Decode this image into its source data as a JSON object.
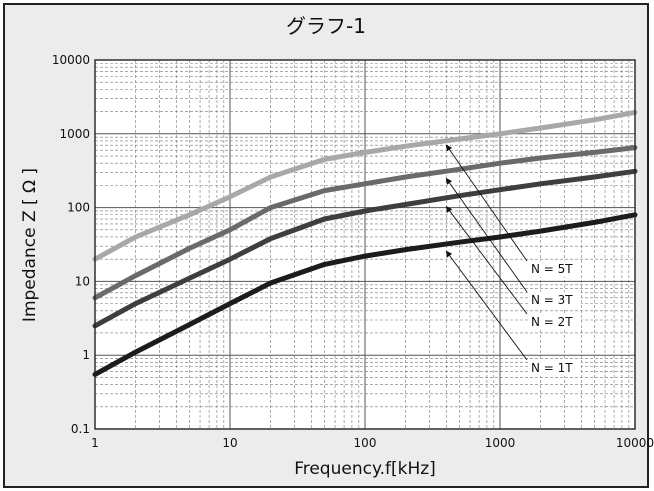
{
  "chart_data": {
    "type": "line",
    "title": "グラフ-1",
    "xlabel": "Frequency.f[kHz]",
    "ylabel": "Impedance Z [ Ω ]",
    "x_scale": "log",
    "y_scale": "log",
    "xlim": [
      1,
      10000
    ],
    "ylim": [
      0.1,
      10000
    ],
    "x_ticks": [
      "1",
      "10",
      "100",
      "1000",
      "10000"
    ],
    "y_ticks": [
      "0.1",
      "1",
      "10",
      "100",
      "1000",
      "10000"
    ],
    "grid": true,
    "colors": {
      "N = 5T": "#a8a8a8",
      "N = 3T": "#6a6a6a",
      "N = 2T": "#3e3e3e",
      "N = 1T": "#1c1c1c"
    },
    "series": [
      {
        "name": "N = 5T",
        "x": [
          1,
          2,
          5,
          10,
          20,
          50,
          100,
          200,
          500,
          1000,
          2000,
          5000,
          10000
        ],
        "y": [
          20,
          40,
          80,
          140,
          260,
          450,
          560,
          680,
          850,
          1000,
          1200,
          1550,
          1950
        ]
      },
      {
        "name": "N = 3T",
        "x": [
          1,
          2,
          5,
          10,
          20,
          50,
          100,
          200,
          500,
          1000,
          2000,
          5000,
          10000
        ],
        "y": [
          6,
          12,
          28,
          50,
          100,
          170,
          210,
          260,
          330,
          400,
          470,
          560,
          650
        ]
      },
      {
        "name": "N = 2T",
        "x": [
          1,
          2,
          5,
          10,
          20,
          50,
          100,
          200,
          500,
          1000,
          2000,
          5000,
          10000
        ],
        "y": [
          2.5,
          5,
          11,
          20,
          38,
          70,
          90,
          110,
          145,
          175,
          210,
          260,
          310
        ]
      },
      {
        "name": "N = 1T",
        "x": [
          1,
          2,
          5,
          10,
          20,
          50,
          100,
          200,
          500,
          1000,
          2000,
          5000,
          10000
        ],
        "y": [
          0.55,
          1.1,
          2.6,
          5,
          9.5,
          17,
          22,
          27,
          34,
          40,
          48,
          63,
          80
        ]
      }
    ],
    "annotations": [
      {
        "text": "N = 5T",
        "series": "N = 5T",
        "x": 400,
        "y": 850
      },
      {
        "text": "N = 3T",
        "series": "N = 3T",
        "x": 400,
        "y": 300
      },
      {
        "text": "N = 2T",
        "series": "N = 2T",
        "x": 400,
        "y": 125
      },
      {
        "text": "N = 1T",
        "series": "N = 1T",
        "x": 400,
        "y": 31
      }
    ]
  }
}
